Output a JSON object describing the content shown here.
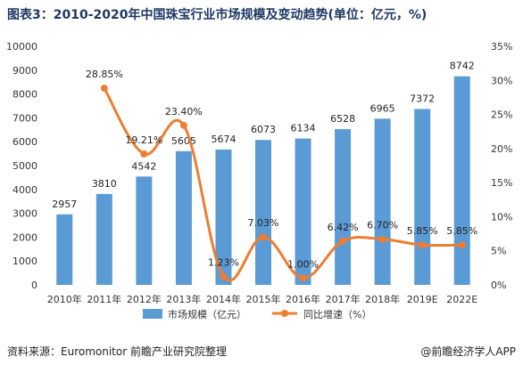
{
  "title": "图表3：2010-2020年中国珠宝行业市场规模及变动趋势(单位：亿元，%)",
  "source": "资料来源：Euromonitor 前瞻产业研究院整理",
  "brand": "@前瞻经济学人APP",
  "chart_data": {
    "type": "bar",
    "categories": [
      "2010年",
      "2011年",
      "2012年",
      "2013年",
      "2014年",
      "2015年",
      "2016年",
      "2017年",
      "2018年",
      "2019E",
      "2022E"
    ],
    "series": [
      {
        "name": "市场规模（亿元）",
        "type": "bar",
        "axis": "left",
        "color": "#5b9bd5",
        "values": [
          2957,
          3810,
          4542,
          5605,
          5674,
          6073,
          6134,
          6528,
          6965,
          7372,
          8742
        ],
        "labels": [
          "2957",
          "3810",
          "4542",
          "5605",
          "5674",
          "6073",
          "6134",
          "6528",
          "6965",
          "7372",
          "8742"
        ]
      },
      {
        "name": "同比增速（%）",
        "type": "line",
        "axis": "right",
        "color": "#ed7d31",
        "values": [
          null,
          28.85,
          19.21,
          23.4,
          1.23,
          7.03,
          1.0,
          6.42,
          6.7,
          5.85,
          5.85
        ],
        "labels": [
          "",
          "28.85%",
          "19.21%",
          "23.40%",
          "1.23%",
          "7.03%",
          "1.00%",
          "6.42%",
          "6.70%",
          "5.85%",
          "5.85%"
        ]
      }
    ],
    "y_left": {
      "range": [
        0,
        10000
      ],
      "ticks": [
        0,
        1000,
        2000,
        3000,
        4000,
        5000,
        6000,
        7000,
        8000,
        9000,
        10000
      ],
      "tick_labels": [
        "0",
        "1000",
        "2000",
        "3000",
        "4000",
        "5000",
        "6000",
        "7000",
        "8000",
        "9000",
        "10000"
      ]
    },
    "y_right": {
      "range": [
        0,
        35
      ],
      "ticks": [
        0,
        5,
        10,
        15,
        20,
        25,
        30,
        35
      ],
      "tick_labels": [
        "0%",
        "5%",
        "10%",
        "15%",
        "20%",
        "25%",
        "30%",
        "35%"
      ]
    },
    "grid": false,
    "legend": "bottom"
  }
}
